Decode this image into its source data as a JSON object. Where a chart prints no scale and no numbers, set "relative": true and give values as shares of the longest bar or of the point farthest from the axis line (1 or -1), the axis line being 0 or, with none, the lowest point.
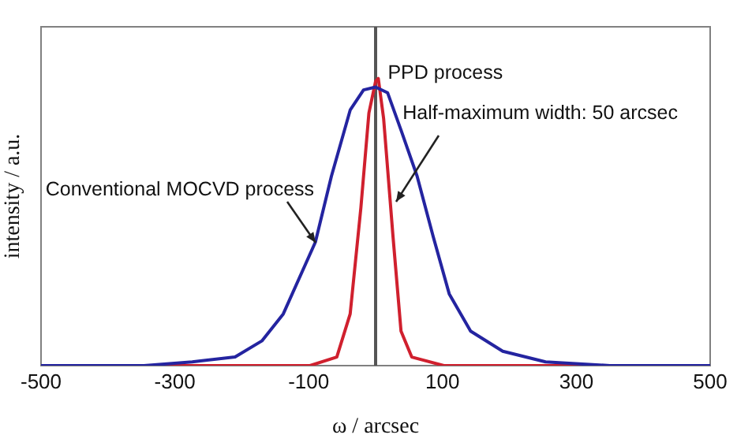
{
  "chart_data": {
    "type": "line",
    "xlabel": "ω / arcsec",
    "ylabel": "intensity / a.u.",
    "relative": true,
    "xlim": [
      -500,
      500
    ],
    "xticks": [
      -500,
      -300,
      -100,
      100,
      300,
      500
    ],
    "grid": false,
    "legend": false,
    "marker": "none",
    "line_style": "solid",
    "series": [
      {
        "color": "#2424a0",
        "x": [
          -500,
          -346,
          -274,
          -210,
          -170,
          -138,
          -90,
          -66,
          -38,
          -18,
          0,
          18,
          38,
          62,
          86,
          110,
          142,
          190,
          254,
          350,
          500
        ],
        "values": [
          0,
          0,
          0.013,
          0.03,
          0.086,
          0.18,
          0.43,
          0.66,
          0.89,
          0.96,
          0.97,
          0.95,
          0.82,
          0.66,
          0.45,
          0.25,
          0.12,
          0.05,
          0.013,
          0,
          0
        ]
      },
      {
        "color": "#d0202e",
        "x": [
          -500,
          -98,
          -58,
          -38,
          -22,
          -10,
          0,
          4,
          12,
          26,
          38,
          54,
          102,
          500
        ],
        "values": [
          0,
          0,
          0.03,
          0.18,
          0.55,
          0.88,
          0.99,
          1,
          0.86,
          0.45,
          0.12,
          0.03,
          0,
          0
        ]
      }
    ],
    "ref_lines": [
      {
        "axis": "x",
        "value": 0,
        "color": "#555555"
      }
    ],
    "annotations": [
      {
        "text": "Conventional MOCVD process",
        "x": -90,
        "y": 0.43
      },
      {
        "text": "PPD process",
        "x": 4,
        "y": 1
      },
      {
        "text": "Half-maximum width: 50 arcsec",
        "x": 31,
        "y": 0.57
      }
    ]
  }
}
